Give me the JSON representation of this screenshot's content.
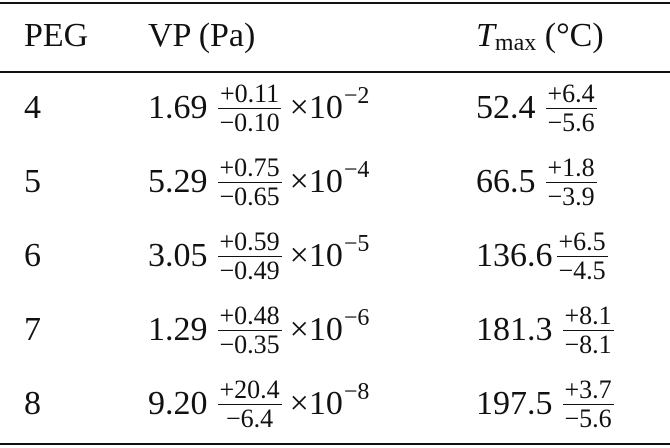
{
  "header": {
    "col1": "PEG",
    "col2": "VP (Pa)",
    "col3_symbol": "T",
    "col3_sub": "max",
    "col3_unit": "(°C)"
  },
  "rows": [
    {
      "peg": "4",
      "vp": "1.69",
      "vp_plus": "+0.11",
      "vp_minus": "−0.10",
      "vp_exp": "−2",
      "tmax": "52.4",
      "tmax_plus": "+6.4",
      "tmax_minus": "−5.6"
    },
    {
      "peg": "5",
      "vp": "5.29",
      "vp_plus": "+0.75",
      "vp_minus": "−0.65",
      "vp_exp": "−4",
      "tmax": "66.5",
      "tmax_plus": "+1.8",
      "tmax_minus": "−3.9"
    },
    {
      "peg": "6",
      "vp": "3.05",
      "vp_plus": "+0.59",
      "vp_minus": "−0.49",
      "vp_exp": "−5",
      "tmax": "136.6",
      "tmax_plus": "+6.5",
      "tmax_minus": "−4.5"
    },
    {
      "peg": "7",
      "vp": "1.29",
      "vp_plus": "+0.48",
      "vp_minus": "−0.35",
      "vp_exp": "−6",
      "tmax": "181.3",
      "tmax_plus": "+8.1",
      "tmax_minus": "−8.1"
    },
    {
      "peg": "8",
      "vp": "9.20",
      "vp_plus": "+20.4",
      "vp_minus": "−6.4",
      "vp_exp": "−8",
      "tmax": "197.5",
      "tmax_plus": "+3.7",
      "tmax_minus": "−5.6"
    }
  ],
  "times_base": "×10"
}
